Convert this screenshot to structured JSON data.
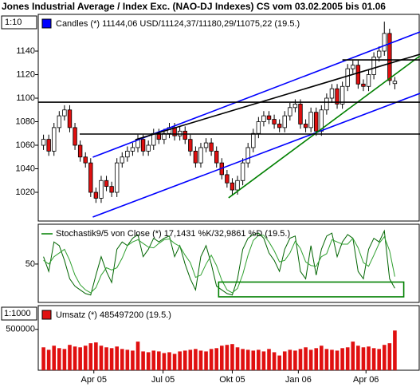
{
  "chart_data": [
    {
      "type": "candlestick",
      "title": "Jones Industrial Average / Index Exc. (NAO-DJ Indexes) CS vom 03.02.2005 bis 01.06",
      "scale_label": "1:10",
      "legend": "Candles (*) 11144,06 USD/11124,37/11180,29/11075,22 (19.5.)",
      "color": "#0000ff",
      "up_color": "#ffffff",
      "down_color": "#e01010",
      "x": [
        0,
        1,
        2,
        3,
        4,
        5,
        6,
        7,
        8,
        9,
        10,
        11,
        12,
        13,
        14,
        15,
        16,
        17,
        18,
        19,
        20,
        21,
        22,
        23,
        24,
        25,
        26,
        27,
        28,
        29,
        30,
        31,
        32,
        33,
        34,
        35,
        36,
        37,
        38,
        39,
        40,
        41,
        42,
        43,
        44,
        45,
        46,
        47,
        48,
        49,
        50,
        51,
        52,
        53,
        54,
        55,
        56,
        57,
        58,
        59,
        60,
        61,
        62,
        63,
        64,
        65,
        66,
        67
      ],
      "open": [
        1060,
        1065,
        1055,
        1075,
        1085,
        1090,
        1075,
        1060,
        1050,
        1045,
        1020,
        1015,
        1030,
        1025,
        1020,
        1045,
        1050,
        1055,
        1058,
        1065,
        1055,
        1060,
        1070,
        1065,
        1070,
        1075,
        1068,
        1072,
        1065,
        1055,
        1045,
        1058,
        1062,
        1055,
        1045,
        1035,
        1028,
        1022,
        1030,
        1045,
        1058,
        1070,
        1080,
        1085,
        1082,
        1078,
        1075,
        1085,
        1092,
        1095,
        1078,
        1075,
        1088,
        1072,
        1090,
        1100,
        1108,
        1095,
        1110,
        1125,
        1128,
        1112,
        1110,
        1120,
        1135,
        1140,
        1155,
        1112.4
      ],
      "high": [
        1069,
        1069,
        1079,
        1089,
        1094,
        1094,
        1079,
        1064,
        1054,
        1049,
        1024,
        1034,
        1034,
        1029,
        1049,
        1054,
        1059,
        1062,
        1069,
        1069,
        1064,
        1074,
        1074,
        1074,
        1079,
        1079,
        1076,
        1076,
        1069,
        1059,
        1062,
        1066,
        1066,
        1059,
        1049,
        1039,
        1032,
        1034,
        1049,
        1062,
        1074,
        1084,
        1089,
        1089,
        1086,
        1082,
        1089,
        1096,
        1099,
        1099,
        1082,
        1092,
        1092,
        1094,
        1104,
        1112,
        1112,
        1114,
        1129,
        1132,
        1132,
        1116,
        1124,
        1139,
        1144,
        1165,
        1159,
        1118.03
      ],
      "low": [
        1056,
        1051,
        1051,
        1071,
        1081,
        1071,
        1056,
        1046,
        1041,
        1016,
        1011,
        1011,
        1021,
        1016,
        1016,
        1041,
        1046,
        1051,
        1054,
        1051,
        1051,
        1056,
        1061,
        1061,
        1066,
        1064,
        1064,
        1061,
        1051,
        1041,
        1041,
        1054,
        1051,
        1041,
        1031,
        1024,
        1018,
        1018,
        1026,
        1041,
        1054,
        1066,
        1076,
        1078,
        1074,
        1071,
        1071,
        1081,
        1088,
        1074,
        1071,
        1071,
        1068,
        1068,
        1086,
        1096,
        1091,
        1091,
        1106,
        1121,
        1108,
        1106,
        1106,
        1116,
        1131,
        1136,
        1111,
        1107.52
      ],
      "close": [
        1065,
        1055,
        1075,
        1085,
        1090,
        1075,
        1060,
        1050,
        1045,
        1020,
        1015,
        1030,
        1025,
        1020,
        1045,
        1050,
        1055,
        1058,
        1065,
        1055,
        1060,
        1070,
        1065,
        1070,
        1075,
        1068,
        1072,
        1065,
        1055,
        1045,
        1058,
        1062,
        1055,
        1045,
        1035,
        1028,
        1022,
        1030,
        1045,
        1058,
        1070,
        1080,
        1085,
        1082,
        1078,
        1075,
        1085,
        1092,
        1095,
        1078,
        1075,
        1088,
        1072,
        1090,
        1100,
        1108,
        1095,
        1110,
        1125,
        1128,
        1112,
        1110,
        1120,
        1135,
        1140,
        1155,
        1115,
        1114.4
      ],
      "lines": [
        {
          "color": "#0000ff",
          "x": [
            9.4,
            71.8
          ],
          "y": [
            1049.8,
            1156.3
          ]
        },
        {
          "color": "#0000ff",
          "x": [
            9.4,
            71.8
          ],
          "y": [
            999,
            1104.1
          ]
        },
        {
          "color": "#000000",
          "x": [
            17.5,
            71.8
          ],
          "y": [
            1064.7,
            1137.3
          ]
        },
        {
          "color": "#008000",
          "x": [
            35.3,
            71.8
          ],
          "y": [
            1015.3,
            1135.9
          ]
        },
        {
          "color": "#000000",
          "x": [
            -1,
            71.8
          ],
          "y": [
            1096.6,
            1096.6
          ]
        },
        {
          "color": "#000000",
          "x": [
            6.9,
            71.8
          ],
          "y": [
            1069.5,
            1069.5
          ]
        },
        {
          "color": "#000000",
          "x": [
            57,
            71.8
          ],
          "y": [
            1132.5,
            1132.5
          ]
        }
      ],
      "xlim": [
        -1,
        71.8
      ],
      "xticks": [
        {
          "value": 9.6,
          "label": "Apr 05"
        },
        {
          "value": 22.8,
          "label": "Jul 05"
        },
        {
          "value": 36.0,
          "label": "Okt 05"
        },
        {
          "value": 48.6,
          "label": "Jan 06"
        },
        {
          "value": 61.5,
          "label": "Apr 06"
        }
      ],
      "ylim": [
        995.6,
        1171.2
      ],
      "yticks": [
        1020,
        1040,
        1060,
        1080,
        1100,
        1120,
        1140
      ]
    },
    {
      "type": "line",
      "legend": "Stochastik9/5 von Close (*) 17,1431 %K/32,9861 %D (19.5.)",
      "color": "#008000",
      "series": [
        {
          "color": "#006400",
          "values": [
            60,
            40,
            80,
            75,
            55,
            30,
            20,
            15,
            10,
            8,
            35,
            60,
            40,
            25,
            70,
            80,
            75,
            85,
            90,
            60,
            70,
            85,
            80,
            85,
            88,
            60,
            75,
            50,
            30,
            15,
            60,
            75,
            50,
            20,
            15,
            10,
            8,
            30,
            70,
            85,
            90,
            92,
            85,
            65,
            55,
            40,
            70,
            85,
            88,
            40,
            30,
            75,
            35,
            70,
            88,
            92,
            60,
            80,
            90,
            85,
            40,
            30,
            70,
            85,
            80,
            95,
            30,
            17.1431
          ]
        },
        {
          "color": "#2fa02f",
          "values": [
            55,
            50,
            60,
            65,
            70,
            55,
            35,
            22,
            15,
            11,
            18,
            35,
            45,
            42,
            45,
            58,
            75,
            80,
            83,
            78,
            73,
            72,
            78,
            83,
            84,
            78,
            74,
            62,
            52,
            32,
            35,
            50,
            62,
            48,
            28,
            15,
            11,
            17,
            36,
            62,
            82,
            89,
            89,
            80,
            68,
            53,
            55,
            65,
            81,
            71,
            53,
            48,
            47,
            60,
            64,
            83,
            80,
            77,
            77,
            85,
            72,
            52,
            47,
            62,
            78,
            87,
            68,
            32.9861
          ]
        }
      ],
      "box": {
        "color": "#008000",
        "x": [
          33.4,
          68.7
        ],
        "y": [
          5.6,
          25.6
        ]
      },
      "ylim": [
        -2,
        104
      ],
      "yticks": [
        50
      ]
    },
    {
      "type": "bar",
      "scale_label": "1:1000",
      "legend": "Umsatz (*) 485497200 (19.5.)",
      "color": "#e01010",
      "values": [
        280000,
        250000,
        300000,
        270000,
        260000,
        310000,
        290000,
        280000,
        300000,
        330000,
        340000,
        300000,
        280000,
        270000,
        290000,
        260000,
        250000,
        240000,
        350000,
        230000,
        220000,
        240000,
        230000,
        210000,
        220000,
        200000,
        230000,
        240000,
        250000,
        260000,
        240000,
        230000,
        260000,
        270000,
        300000,
        310000,
        320000,
        280000,
        260000,
        250000,
        240000,
        250000,
        230000,
        260000,
        220000,
        180000,
        230000,
        250000,
        240000,
        260000,
        280000,
        250000,
        270000,
        300000,
        260000,
        250000,
        240000,
        270000,
        280000,
        350000,
        300000,
        280000,
        290000,
        270000,
        260000,
        310000,
        330000,
        485497.2
      ],
      "ylim": [
        0,
        790000
      ],
      "yticks": [
        500000
      ]
    }
  ]
}
